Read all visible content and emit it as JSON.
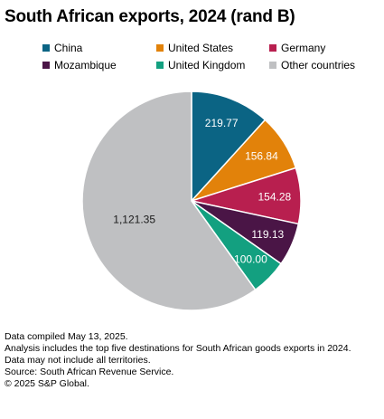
{
  "chart_data": {
    "type": "pie",
    "title": "South African exports, 2024 (rand B)",
    "slices": [
      {
        "name": "China",
        "value": 219.77,
        "label": "219.77",
        "color": "#0B6484",
        "label_color": "#ffffff"
      },
      {
        "name": "United States",
        "value": 156.84,
        "label": "156.84",
        "color": "#E2820A",
        "label_color": "#ffffff"
      },
      {
        "name": "Germany",
        "value": 154.28,
        "label": "154.28",
        "color": "#B81F4F",
        "label_color": "#ffffff"
      },
      {
        "name": "Mozambique",
        "value": 119.13,
        "label": "119.13",
        "color": "#4A1546",
        "label_color": "#ffffff"
      },
      {
        "name": "United Kingdom",
        "value": 100.0,
        "label": "100.00",
        "color": "#13A080",
        "label_color": "#ffffff"
      },
      {
        "name": "Other countries",
        "value": 1121.35,
        "label": "1,121.35",
        "color": "#BFC0C2",
        "label_color": "#1a1a1a"
      }
    ],
    "legend_placement": "top"
  },
  "notes": [
    "Data compiled May 13, 2025.",
    "Analysis includes the top five destinations for South African goods exports in 2024.",
    "Data may not include all territories.",
    "Source: South African Revenue Service.",
    "© 2025 S&P Global."
  ]
}
